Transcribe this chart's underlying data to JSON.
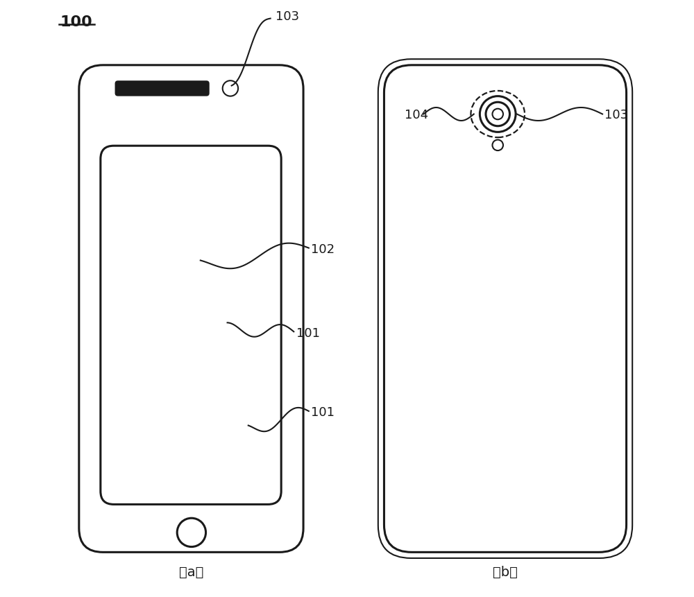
{
  "bg_color": "#ffffff",
  "line_color": "#1a1a1a",
  "label_100": "100",
  "label_101": "101",
  "label_102": "102",
  "label_103": "103",
  "label_104": "104",
  "caption_a": "（a）",
  "caption_b": "（b）"
}
